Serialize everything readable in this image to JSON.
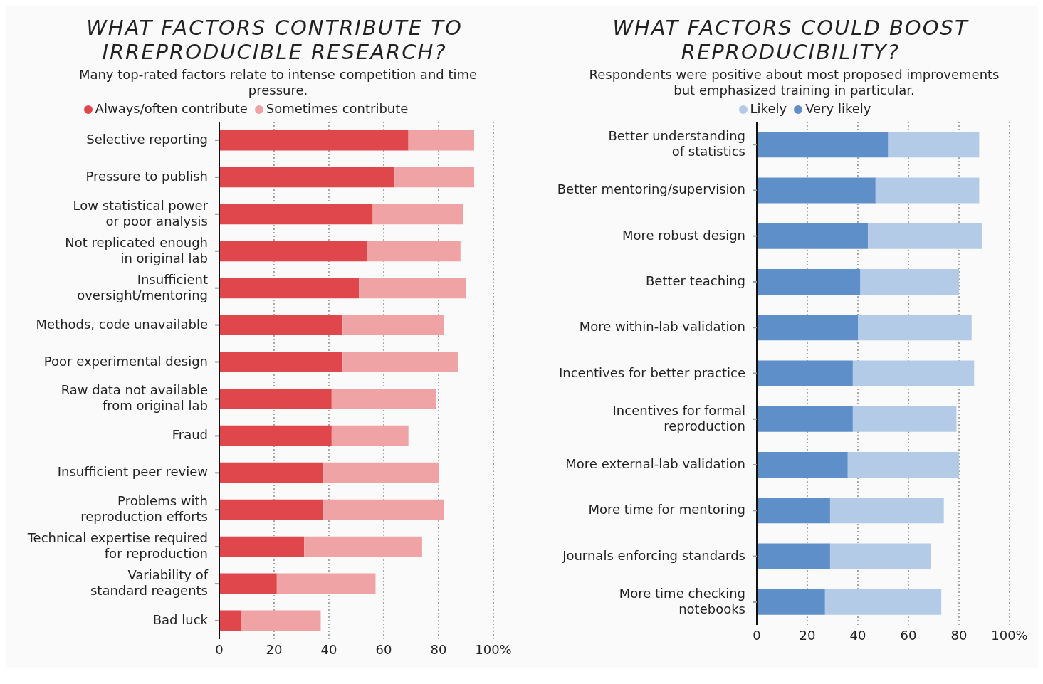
{
  "chart_data": [
    {
      "type": "bar",
      "orientation": "horizontal",
      "stacked": true,
      "title": "WHAT FACTORS CONTRIBUTE TO IRREPRODUCIBLE RESEARCH?",
      "subtitle": "Many top-rated factors relate to intense competition and time pressure.",
      "categories": [
        "Selective reporting",
        "Pressure to publish",
        "Low statistical power\nor poor analysis",
        "Not replicated enough\nin original lab",
        "Insufficient\noversight/mentoring",
        "Methods, code unavailable",
        "Poor experimental design",
        "Raw data not available\nfrom original lab",
        "Fraud",
        "Insufficient peer review",
        "Problems with\nreproduction efforts",
        "Technical expertise required\nfor reproduction",
        "Variability of\nstandard reagents",
        "Bad luck"
      ],
      "series": [
        {
          "name": "Always/often contribute",
          "color": "#e0474c",
          "values": [
            69,
            64,
            56,
            54,
            51,
            45,
            45,
            41,
            41,
            38,
            38,
            31,
            21,
            8
          ]
        },
        {
          "name": "Sometimes contribute",
          "color": "#f0a3a5",
          "values": [
            24,
            29,
            33,
            34,
            39,
            37,
            42,
            38,
            28,
            42,
            44,
            43,
            36,
            29
          ]
        }
      ],
      "xlim": [
        0,
        100
      ],
      "xticks": [
        0,
        20,
        40,
        60,
        80,
        {
          "value": 100,
          "label": "100%"
        }
      ],
      "grid": "x",
      "legend": "top"
    },
    {
      "type": "bar",
      "orientation": "horizontal",
      "stacked": true,
      "title": "WHAT FACTORS COULD BOOST REPRODUCIBILITY?",
      "subtitle": "Respondents were positive about most proposed improvements but emphasized training in particular.",
      "categories": [
        "Better understanding\nof statistics",
        "Better mentoring/supervision",
        "More robust design",
        "Better teaching",
        "More within-lab validation",
        "Incentives for better practice",
        "Incentives for formal\nreproduction",
        "More external-lab validation",
        "More time for mentoring",
        "Journals enforcing standards",
        "More time checking\nnotebooks"
      ],
      "series": [
        {
          "name": "Very likely",
          "color": "#5f8fc9",
          "values": [
            52,
            47,
            44,
            41,
            40,
            38,
            38,
            36,
            29,
            29,
            27
          ]
        },
        {
          "name": "Likely",
          "color": "#b3cbe6",
          "values": [
            36,
            41,
            45,
            39,
            45,
            48,
            41,
            44,
            45,
            40,
            46
          ]
        }
      ],
      "xlim": [
        0,
        100
      ],
      "xticks": [
        0,
        20,
        40,
        60,
        80,
        {
          "value": 100,
          "label": "100%"
        }
      ],
      "grid": "x",
      "legend": "top"
    }
  ]
}
